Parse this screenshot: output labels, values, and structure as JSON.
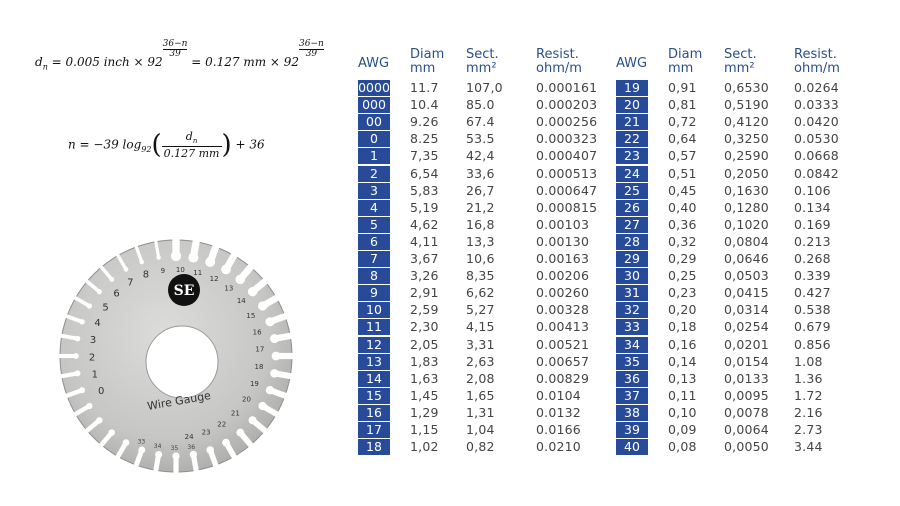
{
  "formulas": {
    "dn": {
      "lhs": "d",
      "lhs_sub": "n",
      "part1": " = 0.005 inch × 92",
      "exp_num": "36−n",
      "exp_den": "39",
      "part2": " = 0.127 mm × 92"
    },
    "n": {
      "lhs": "n = −39 log",
      "log_base": "92",
      "num": "d",
      "num_sub": "n",
      "den": "0.127 mm",
      "tail": " + 36"
    }
  },
  "table_left": {
    "headers": [
      {
        "l1": "AWG",
        "l2": ""
      },
      {
        "l1": "Diam",
        "l2": "mm"
      },
      {
        "l1": "Sect.",
        "l2": "mm²"
      },
      {
        "l1": "Resist.",
        "l2": "ohm/m"
      }
    ],
    "rows": [
      [
        "0000",
        "11.7",
        "107,0",
        "0.000161"
      ],
      [
        "000",
        "10.4",
        "85.0",
        "0.000203"
      ],
      [
        "00",
        "9.26",
        "67.4",
        "0.000256"
      ],
      [
        "0",
        "8.25",
        "53.5",
        "0.000323"
      ],
      [
        "1",
        "7,35",
        "42,4",
        "0.000407"
      ],
      [
        "2",
        "6,54",
        "33,6",
        "0.000513"
      ],
      [
        "3",
        "5,83",
        "26,7",
        "0.000647"
      ],
      [
        "4",
        "5,19",
        "21,2",
        "0.000815"
      ],
      [
        "5",
        "4,62",
        "16,8",
        "0.00103"
      ],
      [
        "6",
        "4,11",
        "13,3",
        "0.00130"
      ],
      [
        "7",
        "3,67",
        "10,6",
        "0.00163"
      ],
      [
        "8",
        "3,26",
        "8,35",
        "0.00206"
      ],
      [
        "9",
        "2,91",
        "6,62",
        "0.00260"
      ],
      [
        "10",
        "2,59",
        "5,27",
        "0.00328"
      ],
      [
        "11",
        "2,30",
        "4,15",
        "0.00413"
      ],
      [
        "12",
        "2,05",
        "3,31",
        "0.00521"
      ],
      [
        "13",
        "1,83",
        "2,63",
        "0.00657"
      ],
      [
        "14",
        "1,63",
        "2,08",
        "0.00829"
      ],
      [
        "15",
        "1,45",
        "1,65",
        "0.0104"
      ],
      [
        "16",
        "1,29",
        "1,31",
        "0.0132"
      ],
      [
        "17",
        "1,15",
        "1,04",
        "0.0166"
      ],
      [
        "18",
        "1,02",
        "0,82",
        "0.0210"
      ]
    ]
  },
  "table_right": {
    "headers": [
      {
        "l1": "AWG",
        "l2": ""
      },
      {
        "l1": "Diam",
        "l2": "mm"
      },
      {
        "l1": "Sect.",
        "l2": "mm²"
      },
      {
        "l1": "Resist.",
        "l2": "ohm/m"
      }
    ],
    "rows": [
      [
        "19",
        "0,91",
        "0,6530",
        "0.0264"
      ],
      [
        "20",
        "0,81",
        "0,5190",
        "0.0333"
      ],
      [
        "21",
        "0,72",
        "0,4120",
        "0.0420"
      ],
      [
        "22",
        "0,64",
        "0,3250",
        "0.0530"
      ],
      [
        "23",
        "0,57",
        "0,2590",
        "0.0668"
      ],
      [
        "24",
        "0,51",
        "0,2050",
        "0.0842"
      ],
      [
        "25",
        "0,45",
        "0,1630",
        "0.106"
      ],
      [
        "26",
        "0,40",
        "0,1280",
        "0.134"
      ],
      [
        "27",
        "0,36",
        "0,1020",
        "0.169"
      ],
      [
        "28",
        "0,32",
        "0,0804",
        "0.213"
      ],
      [
        "29",
        "0,29",
        "0,0646",
        "0.268"
      ],
      [
        "30",
        "0,25",
        "0,0503",
        "0.339"
      ],
      [
        "31",
        "0,23",
        "0,0415",
        "0.427"
      ],
      [
        "32",
        "0,20",
        "0,0314",
        "0.538"
      ],
      [
        "33",
        "0,18",
        "0,0254",
        "0.679"
      ],
      [
        "34",
        "0,16",
        "0,0201",
        "0.856"
      ],
      [
        "35",
        "0,14",
        "0,0154",
        "1.08"
      ],
      [
        "36",
        "0,13",
        "0,0133",
        "1.36"
      ],
      [
        "37",
        "0,11",
        "0,0095",
        "1.72"
      ],
      [
        "38",
        "0,10",
        "0,0078",
        "2.16"
      ],
      [
        "39",
        "0,09",
        "0,0064",
        "2.73"
      ],
      [
        "40",
        "0,08",
        "0,0050",
        "3.44"
      ]
    ]
  },
  "gauge": {
    "logo": "SE",
    "label": "Wire Gauge",
    "outer_numbers": [
      "0",
      "1",
      "2",
      "3",
      "4",
      "5",
      "6",
      "7",
      "8",
      "9",
      "10",
      "11",
      "12",
      "13",
      "14",
      "15",
      "16",
      "17",
      "18",
      "19",
      "20",
      "21",
      "22",
      "23",
      "24"
    ],
    "inner_numbers": [
      "33",
      "34",
      "35",
      "36"
    ],
    "colors": {
      "metal": "#c9c9c7",
      "edge": "#8f8f8d",
      "awg_fill": "#274b99",
      "header_text": "#2a4f8c"
    }
  }
}
